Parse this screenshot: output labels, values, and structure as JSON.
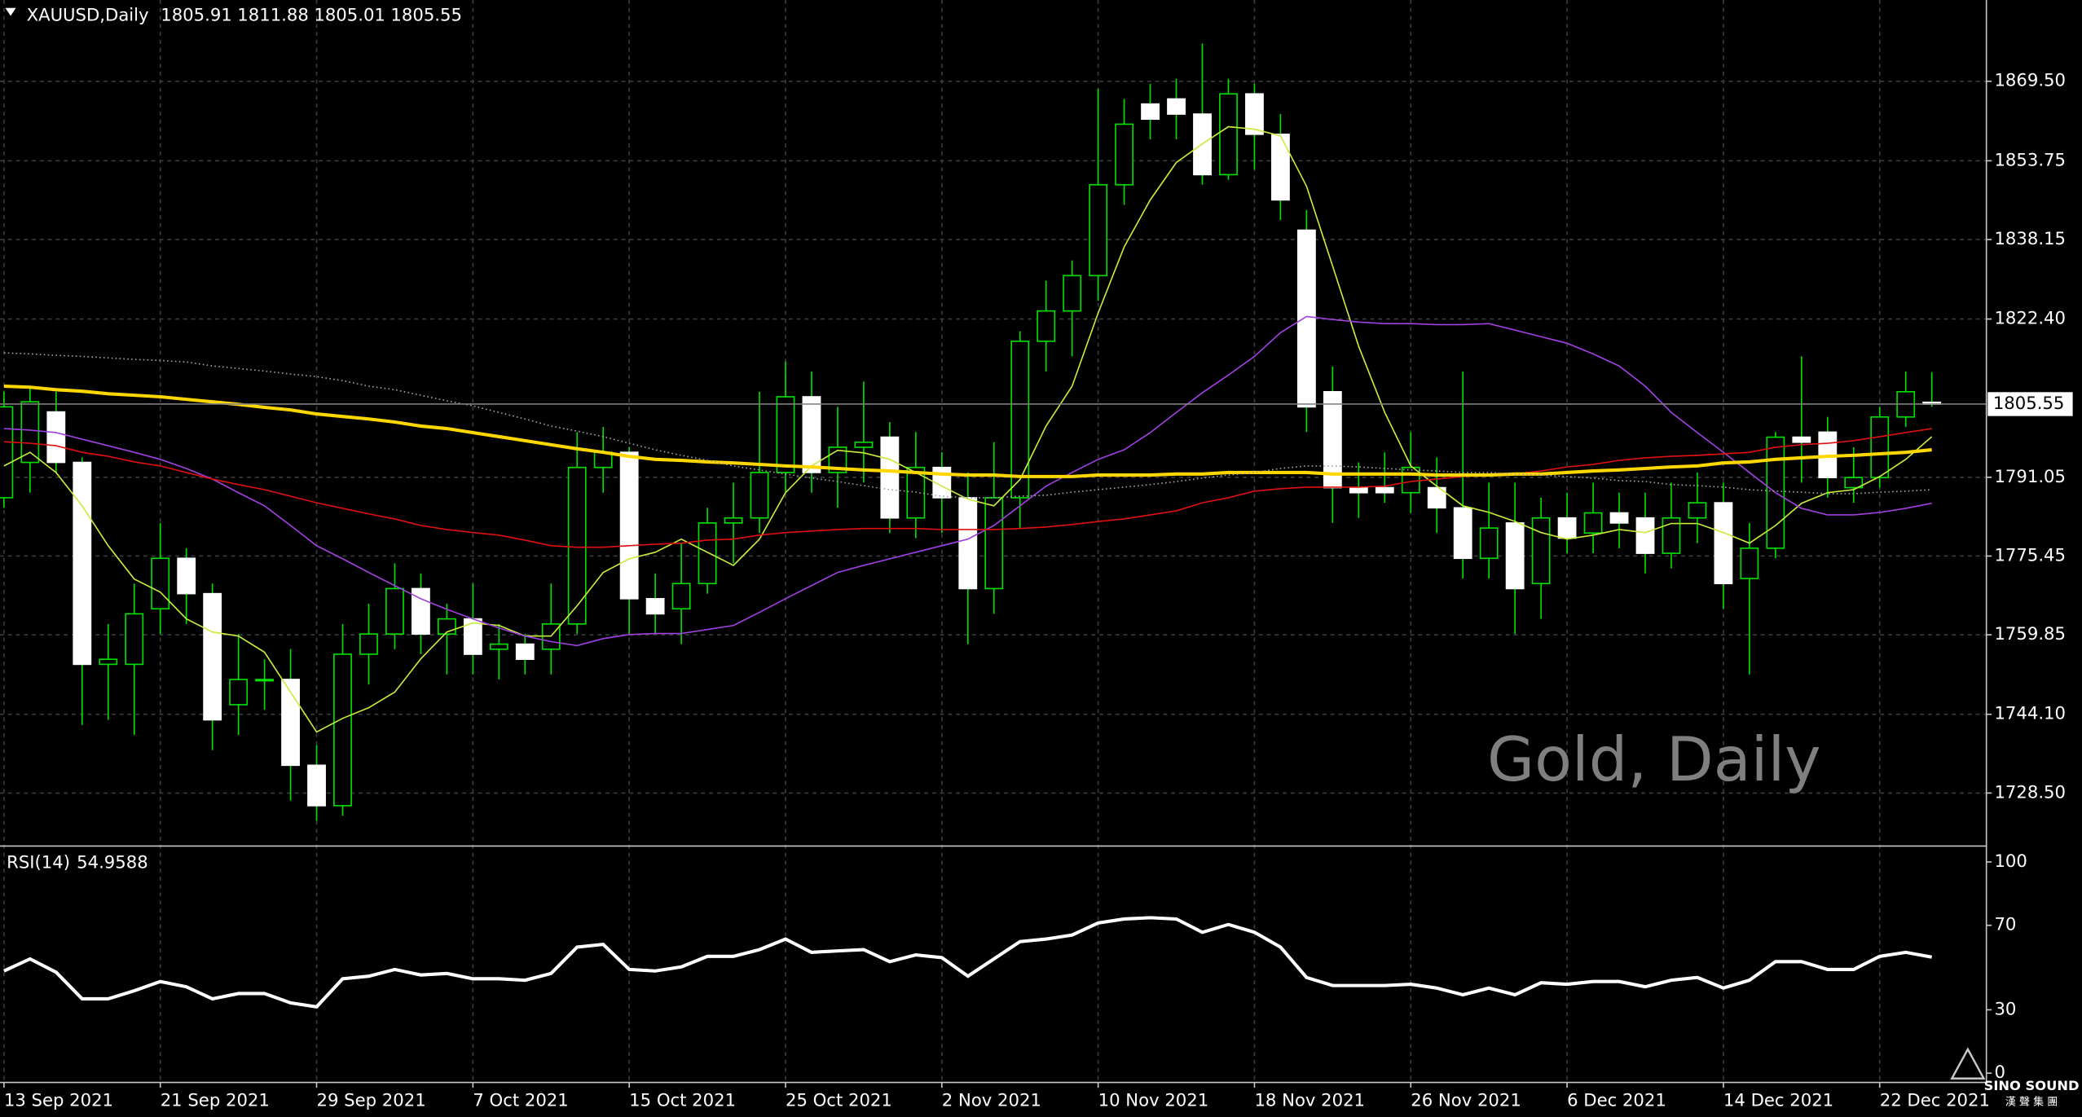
{
  "chart_data": [
    {
      "type": "candlestick",
      "title": "XAUUSD,Daily",
      "watermark": "Gold, Daily",
      "brand": "SINO SOUND",
      "brand_sub": "漢 聲 集 團",
      "categories": [
        "13 Sep 2021",
        null,
        null,
        null,
        null,
        null,
        "21 Sep 2021",
        null,
        null,
        null,
        null,
        null,
        "29 Sep 2021",
        null,
        null,
        null,
        null,
        null,
        "7 Oct 2021",
        null,
        null,
        null,
        null,
        null,
        "15 Oct 2021",
        null,
        null,
        null,
        null,
        null,
        "25 Oct 2021",
        null,
        null,
        null,
        null,
        null,
        "2 Nov 2021",
        null,
        null,
        null,
        null,
        null,
        "10 Nov 2021",
        null,
        null,
        null,
        null,
        null,
        "18 Nov 2021",
        null,
        null,
        null,
        null,
        null,
        "26 Nov 2021",
        null,
        null,
        null,
        null,
        null,
        "6 Dec 2021",
        null,
        null,
        null,
        null,
        null,
        "14 Dec 2021",
        null,
        null,
        null,
        null,
        null,
        "22 Dec 2021",
        null,
        null
      ],
      "open": [
        1787,
        1794,
        1804,
        1794,
        1754,
        1754,
        1765,
        1775,
        1768,
        1746,
        1751,
        1751,
        1734,
        1726,
        1756,
        1760,
        1769,
        1760,
        1763,
        1757,
        1758,
        1757,
        1762,
        1793,
        1796,
        1767,
        1765,
        1770,
        1782,
        1783,
        1792,
        1807,
        1792,
        1797,
        1799,
        1783,
        1793,
        1787,
        1769,
        1787,
        1818,
        1824,
        1831,
        1849,
        1865,
        1866,
        1863,
        1851,
        1867,
        1859,
        1840,
        1808,
        1789,
        1789,
        1788,
        1789,
        1785,
        1775,
        1782,
        1770,
        1783,
        1780,
        1784,
        1783,
        1776,
        1783,
        1786,
        1771,
        1777,
        1799,
        1800,
        1789,
        1791,
        1803,
        1805.91
      ],
      "high": [
        1808,
        1809,
        1808,
        1795,
        1762,
        1770,
        1782,
        1777,
        1770,
        1760,
        1755,
        1757,
        1738,
        1762,
        1766,
        1774,
        1772,
        1766,
        1770,
        1762,
        1760,
        1770,
        1800,
        1801,
        1797,
        1772,
        1778,
        1785,
        1790,
        1808,
        1814,
        1812,
        1805,
        1810,
        1802,
        1800,
        1796,
        1792,
        1798,
        1820,
        1830,
        1834,
        1868,
        1866,
        1869,
        1870,
        1877,
        1870,
        1869,
        1863,
        1844,
        1813,
        1794,
        1796,
        1800,
        1795,
        1812,
        1790,
        1790,
        1787,
        1788,
        1790,
        1788,
        1788,
        1790,
        1792,
        1790,
        1782,
        1800,
        1815,
        1803,
        1797,
        1805,
        1812,
        1811.88
      ],
      "low": [
        1785,
        1788,
        1792,
        1742,
        1743,
        1740,
        1760,
        1762,
        1737,
        1740,
        1745,
        1727,
        1723,
        1724,
        1750,
        1757,
        1756,
        1752,
        1752,
        1751,
        1752,
        1752,
        1760,
        1788,
        1760,
        1760,
        1758,
        1768,
        1774,
        1780,
        1788,
        1788,
        1785,
        1790,
        1780,
        1779,
        1780,
        1758,
        1764,
        1781,
        1812,
        1815,
        1826,
        1845,
        1858,
        1858,
        1849,
        1850,
        1852,
        1842,
        1800,
        1782,
        1783,
        1786,
        1784,
        1780,
        1771,
        1771,
        1760,
        1763,
        1776,
        1776,
        1777,
        1772,
        1773,
        1778,
        1765,
        1752,
        1775,
        1790,
        1787,
        1786,
        1789,
        1801,
        1805.01
      ],
      "close": [
        1805,
        1806,
        1794,
        1754,
        1755,
        1764,
        1775,
        1768,
        1743,
        1751,
        1751,
        1734,
        1726,
        1756,
        1760,
        1769,
        1760,
        1763,
        1756,
        1758,
        1755,
        1762,
        1793,
        1796,
        1767,
        1764,
        1770,
        1782,
        1783,
        1792,
        1807,
        1792,
        1797,
        1798,
        1783,
        1793,
        1787,
        1769,
        1787,
        1818,
        1824,
        1831,
        1849,
        1861,
        1862,
        1863,
        1851,
        1867,
        1859,
        1846,
        1805,
        1789,
        1788,
        1788,
        1793,
        1785,
        1775,
        1781,
        1769,
        1783,
        1779,
        1784,
        1782,
        1776,
        1783,
        1786,
        1770,
        1777,
        1799,
        1798,
        1791,
        1791,
        1803,
        1808,
        1805.55
      ],
      "bull_color": "#000000",
      "bear_color": "#ffffff",
      "wick_color": "#00e000",
      "overlays": [
        {
          "color": "#c8ec3c",
          "values": [
            1793.3,
            1796.0,
            1792.0,
            1785.4,
            1777.5,
            1770.9,
            1768.3,
            1763.0,
            1760.4,
            1759.6,
            1756.4,
            1748.5,
            1740.6,
            1743.3,
            1745.4,
            1748.5,
            1755.1,
            1760.4,
            1762.2,
            1761.7,
            1759.6,
            1759.6,
            1765.6,
            1772.2,
            1774.9,
            1776.2,
            1778.8,
            1776.2,
            1773.6,
            1778.8,
            1788.0,
            1793.3,
            1796.4,
            1795.9,
            1794.6,
            1792.0,
            1789.3,
            1786.7,
            1785.4,
            1790.6,
            1801.2,
            1809.1,
            1823.6,
            1836.7,
            1846.0,
            1853.4,
            1857.1,
            1860.5,
            1860.0,
            1858.7,
            1848.7,
            1832.9,
            1817.0,
            1803.9,
            1793.3,
            1789.3,
            1785.4,
            1784.1,
            1782.3,
            1780.1,
            1778.8,
            1779.6,
            1780.7,
            1780.1,
            1781.9,
            1781.9,
            1780.1,
            1778.0,
            1781.5,
            1785.9,
            1788.0,
            1788.6,
            1791.2,
            1794.6,
            1799.1
          ]
        },
        {
          "color": "#a040e0",
          "values": [
            1800.7,
            1800.4,
            1799.9,
            1798.6,
            1797.3,
            1796.0,
            1794.6,
            1792.8,
            1790.7,
            1788.0,
            1785.4,
            1781.5,
            1777.5,
            1774.9,
            1772.2,
            1769.6,
            1767.0,
            1764.9,
            1763.0,
            1761.2,
            1759.6,
            1758.5,
            1757.7,
            1759.1,
            1759.9,
            1760.1,
            1760.1,
            1760.9,
            1761.7,
            1764.3,
            1767.0,
            1769.6,
            1772.2,
            1773.6,
            1774.9,
            1776.2,
            1777.5,
            1778.8,
            1781.5,
            1785.4,
            1789.3,
            1792.0,
            1794.6,
            1796.5,
            1799.9,
            1803.9,
            1807.8,
            1811.3,
            1815.0,
            1819.7,
            1822.9,
            1822.3,
            1821.8,
            1821.5,
            1821.5,
            1821.3,
            1821.3,
            1821.5,
            1820.2,
            1818.9,
            1817.6,
            1815.5,
            1813.1,
            1809.1,
            1803.9,
            1799.9,
            1796.0,
            1792.0,
            1788.0,
            1784.9,
            1783.6,
            1783.6,
            1784.1,
            1784.9,
            1785.9
          ]
        },
        {
          "color": "#e01010",
          "values": [
            1798.1,
            1797.8,
            1797.3,
            1796.0,
            1795.2,
            1794.1,
            1793.3,
            1792.0,
            1790.7,
            1789.6,
            1788.6,
            1787.3,
            1786.0,
            1784.9,
            1783.8,
            1782.8,
            1781.5,
            1780.7,
            1780.1,
            1779.6,
            1778.6,
            1777.5,
            1777.2,
            1777.2,
            1777.5,
            1777.8,
            1778.0,
            1778.6,
            1778.8,
            1779.6,
            1780.1,
            1780.4,
            1780.7,
            1780.9,
            1780.9,
            1780.9,
            1780.7,
            1780.7,
            1780.7,
            1780.9,
            1781.2,
            1781.7,
            1782.3,
            1782.8,
            1783.6,
            1784.4,
            1786.0,
            1787.0,
            1788.3,
            1788.8,
            1789.1,
            1789.1,
            1789.1,
            1789.3,
            1790.2,
            1790.7,
            1791.2,
            1791.5,
            1791.7,
            1792.3,
            1793.1,
            1793.6,
            1794.4,
            1794.9,
            1795.2,
            1795.4,
            1795.7,
            1796.0,
            1797.0,
            1797.5,
            1797.8,
            1798.3,
            1799.1,
            1799.9,
            1800.7
          ]
        },
        {
          "color": "#ffd700",
          "values": [
            1809.1,
            1808.9,
            1808.4,
            1808.1,
            1807.6,
            1807.3,
            1807.0,
            1806.5,
            1806.0,
            1805.5,
            1804.9,
            1804.4,
            1803.6,
            1803.1,
            1802.6,
            1802.0,
            1801.2,
            1800.7,
            1799.9,
            1799.1,
            1798.3,
            1797.5,
            1796.7,
            1796.0,
            1795.2,
            1794.6,
            1794.4,
            1794.1,
            1793.9,
            1793.6,
            1793.3,
            1793.1,
            1792.8,
            1792.5,
            1792.3,
            1792.0,
            1791.7,
            1791.5,
            1791.5,
            1791.2,
            1791.2,
            1791.2,
            1791.5,
            1791.5,
            1791.5,
            1791.7,
            1791.7,
            1792.0,
            1792.0,
            1792.0,
            1792.0,
            1791.7,
            1791.7,
            1791.7,
            1791.7,
            1791.5,
            1791.5,
            1791.5,
            1791.7,
            1791.7,
            1792.0,
            1792.3,
            1792.5,
            1792.8,
            1793.1,
            1793.3,
            1793.9,
            1794.1,
            1794.6,
            1794.9,
            1795.2,
            1795.4,
            1795.7,
            1796.0,
            1796.5
          ]
        },
        {
          "color": "#a0a0a0",
          "values": [
            1815.7,
            1815.5,
            1815.2,
            1815.0,
            1814.7,
            1814.4,
            1814.2,
            1813.9,
            1813.1,
            1812.6,
            1812.1,
            1811.5,
            1811.0,
            1810.2,
            1809.1,
            1808.4,
            1807.3,
            1806.2,
            1805.2,
            1803.9,
            1802.6,
            1801.2,
            1800.2,
            1799.1,
            1797.8,
            1796.5,
            1795.4,
            1794.4,
            1793.3,
            1792.5,
            1791.7,
            1790.9,
            1790.2,
            1789.4,
            1788.6,
            1788.1,
            1787.3,
            1787.0,
            1787.0,
            1787.3,
            1787.5,
            1788.1,
            1788.6,
            1789.1,
            1789.6,
            1790.2,
            1790.9,
            1791.5,
            1792.0,
            1792.8,
            1793.3,
            1793.3,
            1793.1,
            1792.8,
            1792.5,
            1792.3,
            1792.0,
            1792.0,
            1791.7,
            1791.5,
            1791.2,
            1790.9,
            1790.4,
            1790.2,
            1789.6,
            1789.4,
            1789.1,
            1788.6,
            1788.3,
            1788.1,
            1787.8,
            1787.8,
            1788.1,
            1788.3,
            1788.6
          ]
        }
      ],
      "ylim": [
        1718.0,
        1885.6
      ],
      "yticks": [
        {
          "value": 1869.5,
          "label": "1869.50"
        },
        1853.75,
        1838.15,
        {
          "value": 1822.4,
          "label": "1822.40"
        },
        1791.05,
        1775.45,
        1759.85,
        {
          "value": 1744.1,
          "label": "1744.10"
        },
        {
          "value": 1728.5,
          "label": "1728.50"
        }
      ],
      "grid": true
    },
    {
      "type": "line",
      "title": "RSI(14)",
      "color": "#ffffff",
      "values": [
        48.4,
        54.1,
        47.8,
        35.2,
        35.2,
        39,
        43.4,
        40.9,
        35.2,
        37.7,
        37.7,
        33.3,
        31.4,
        44.7,
        45.9,
        49.1,
        46.5,
        47.2,
        44.7,
        44.7,
        44,
        47.2,
        59.7,
        61,
        49.1,
        48.4,
        50.3,
        55.3,
        55.3,
        58.5,
        63.5,
        57.2,
        57.9,
        58.5,
        52.8,
        56,
        54.7,
        45.9,
        54.1,
        62.3,
        63.5,
        65.4,
        71.1,
        73,
        73.6,
        73,
        66.7,
        70.4,
        66.7,
        59.7,
        45.3,
        41.5,
        41.5,
        41.5,
        42.1,
        40.3,
        37.1,
        40.3,
        37.1,
        42.8,
        42.1,
        43.4,
        43.4,
        40.9,
        44,
        45.3,
        40.3,
        44,
        52.8,
        52.8,
        49.1,
        49.1,
        55.3,
        57.2,
        54.9588
      ],
      "ylim": [
        -4.4,
        106.9
      ],
      "yticks": [
        0,
        30,
        70,
        100
      ]
    }
  ]
}
